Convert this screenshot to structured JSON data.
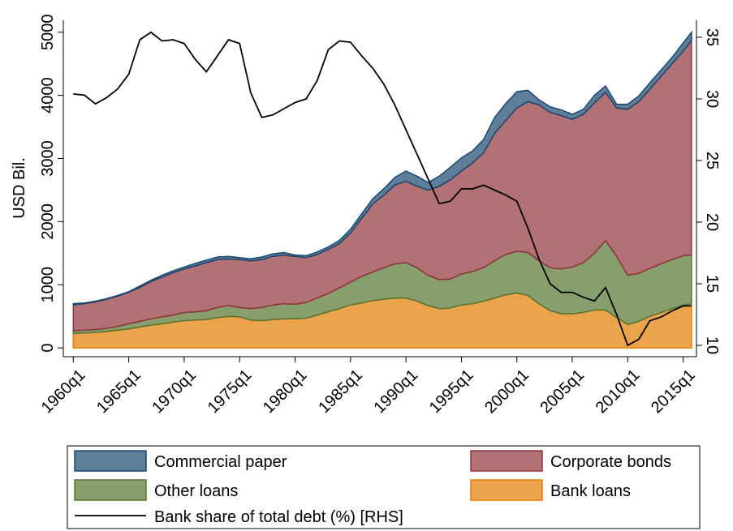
{
  "chart_data": {
    "type": "area",
    "y_label": "USD Bil.",
    "x": [
      1960,
      1961,
      1962,
      1963,
      1964,
      1965,
      1966,
      1967,
      1968,
      1969,
      1970,
      1971,
      1972,
      1973,
      1974,
      1975,
      1976,
      1977,
      1978,
      1979,
      1980,
      1981,
      1982,
      1983,
      1984,
      1985,
      1986,
      1987,
      1988,
      1989,
      1990,
      1991,
      1992,
      1993,
      1994,
      1995,
      1996,
      1997,
      1998,
      1999,
      2000,
      2001,
      2002,
      2003,
      2004,
      2005,
      2006,
      2007,
      2008,
      2009,
      2010,
      2011,
      2012,
      2013,
      2014,
      2015,
      2015.75
    ],
    "xlim": [
      1959.1,
      2016.2
    ],
    "xticks": [
      {
        "value": 1960,
        "label": "1960q1"
      },
      {
        "value": 1965,
        "label": "1965q1"
      },
      {
        "value": 1970,
        "label": "1970q1"
      },
      {
        "value": 1975,
        "label": "1975q1"
      },
      {
        "value": 1980,
        "label": "1980q1"
      },
      {
        "value": 1985,
        "label": "1985q1"
      },
      {
        "value": 1990,
        "label": "1990q1"
      },
      {
        "value": 1995,
        "label": "1995q1"
      },
      {
        "value": 2000,
        "label": "2000q1"
      },
      {
        "value": 2005,
        "label": "2005q1"
      },
      {
        "value": 2010,
        "label": "2010q1"
      },
      {
        "value": 2015,
        "label": "2015q1"
      }
    ],
    "ylim": [
      -140,
      5190
    ],
    "yticks": [
      0,
      1000,
      2000,
      3000,
      4000,
      5000
    ],
    "y2lim": [
      9.08,
      36.38
    ],
    "y2ticks": [
      10,
      15,
      20,
      25,
      30,
      35
    ],
    "stacked": true,
    "series": [
      {
        "name": "Commercial paper",
        "color": "#1a476f",
        "values": [
          20,
          10,
          10,
          10,
          10,
          10,
          20,
          20,
          30,
          30,
          30,
          40,
          40,
          40,
          40,
          30,
          30,
          40,
          40,
          40,
          20,
          30,
          40,
          40,
          50,
          60,
          70,
          80,
          100,
          120,
          160,
          160,
          120,
          160,
          200,
          210,
          190,
          210,
          250,
          270,
          260,
          180,
          80,
          90,
          90,
          80,
          80,
          120,
          100,
          60,
          80,
          90,
          100,
          100,
          100,
          130,
          130
        ]
      },
      {
        "name": "Corporate bonds",
        "color": "#90353b",
        "values": [
          410,
          420,
          440,
          460,
          480,
          500,
          540,
          590,
          630,
          670,
          690,
          730,
          760,
          760,
          740,
          760,
          760,
          760,
          770,
          770,
          760,
          710,
          690,
          700,
          700,
          780,
          920,
          1080,
          1150,
          1250,
          1290,
          1290,
          1350,
          1480,
          1570,
          1630,
          1720,
          1820,
          2020,
          2120,
          2270,
          2390,
          2470,
          2460,
          2430,
          2340,
          2350,
          2380,
          2350,
          2350,
          2630,
          2720,
          2840,
          2970,
          3100,
          3240,
          3400
        ]
      },
      {
        "name": "Other loans",
        "color": "#55752f",
        "values": [
          40,
          45,
          45,
          50,
          60,
          80,
          90,
          100,
          110,
          110,
          130,
          130,
          140,
          160,
          170,
          150,
          180,
          210,
          230,
          240,
          230,
          250,
          270,
          290,
          330,
          360,
          420,
          450,
          500,
          540,
          560,
          530,
          480,
          460,
          460,
          490,
          510,
          530,
          590,
          640,
          660,
          680,
          680,
          680,
          710,
          740,
          790,
          900,
          1100,
          970,
          780,
          760,
          760,
          770,
          780,
          780,
          770
        ]
      },
      {
        "name": "Bank loans",
        "color": "#e37e00",
        "values": [
          230,
          235,
          245,
          260,
          280,
          300,
          330,
          360,
          380,
          410,
          430,
          440,
          450,
          480,
          500,
          490,
          440,
          430,
          450,
          460,
          460,
          470,
          520,
          570,
          620,
          680,
          710,
          750,
          770,
          790,
          790,
          740,
          670,
          620,
          630,
          680,
          700,
          740,
          790,
          840,
          870,
          830,
          700,
          590,
          540,
          540,
          560,
          600,
          600,
          480,
          370,
          420,
          500,
          560,
          620,
          680,
          700
        ]
      },
      {
        "name": "Bank share of total debt (%) [RHS]",
        "color": "#000000",
        "type": "line",
        "axis": "y2",
        "values": [
          30.4,
          30.3,
          29.6,
          30.1,
          30.8,
          32,
          34.8,
          35.4,
          34.7,
          34.8,
          34.5,
          33.2,
          32.2,
          33.5,
          34.8,
          34.5,
          30.5,
          28.5,
          28.7,
          29.2,
          29.7,
          30,
          31.5,
          34,
          34.7,
          34.6,
          33.5,
          32.5,
          31.2,
          29.5,
          27.5,
          25.5,
          23.5,
          21.5,
          21.7,
          22.7,
          22.7,
          23,
          22.6,
          22.2,
          21.7,
          19.5,
          17,
          15,
          14.3,
          14.3,
          13.9,
          13.6,
          14.7,
          12.5,
          10,
          10.5,
          12,
          12.3,
          12.8,
          13.2,
          13.2
        ]
      }
    ]
  }
}
